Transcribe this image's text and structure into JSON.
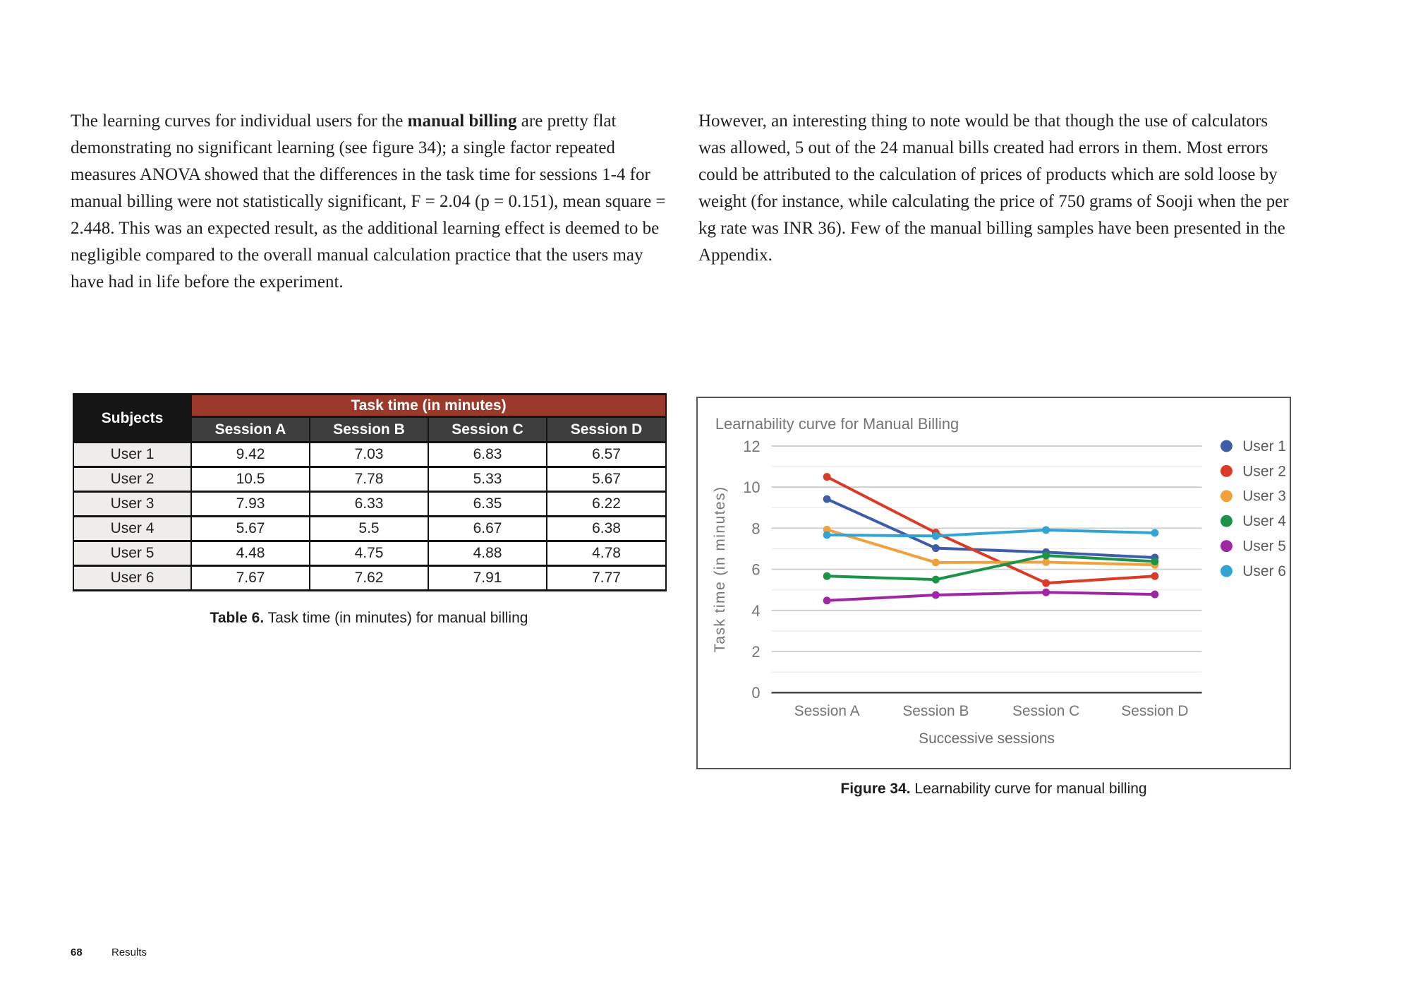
{
  "page": {
    "footer_page_number": "68",
    "footer_section": "Results"
  },
  "paragraphs": {
    "left_pre": "The learning curves for individual users for the ",
    "left_bold": "manual billing",
    "left_post": " are pretty flat demonstrating no significant learning (see figure 34); a single factor repeated measures ANOVA showed that the differences in the task time for sessions 1-4 for manual billing were not statistically significant, F = 2.04 (p = 0.151), mean square = 2.448. This was an expected result, as the additional learning effect is deemed to be negligible compared to the overall manual calculation practice that the users may have had in life before the experiment.",
    "right": "However, an interesting thing to note would be that though the use of calculators was allowed, 5 out of the 24 manual bills created had errors in them. Most errors could be attributed to the calculation of prices of products which are sold loose by weight (for instance, while calculating the price of 750 grams of Sooji when the per kg rate was INR 36). Few of the manual billing samples have been presented in the Appendix."
  },
  "table": {
    "group_header": "Task time (in minutes)",
    "col_headers": [
      "Subjects",
      "Session A",
      "Session B",
      "Session C",
      "Session D"
    ],
    "rows": [
      {
        "subject": "User 1",
        "values": [
          "9.42",
          "7.03",
          "6.83",
          "6.57"
        ]
      },
      {
        "subject": "User 2",
        "values": [
          "10.5",
          "7.78",
          "5.33",
          "5.67"
        ]
      },
      {
        "subject": "User 3",
        "values": [
          "7.93",
          "6.33",
          "6.35",
          "6.22"
        ]
      },
      {
        "subject": "User 4",
        "values": [
          "5.67",
          "5.5",
          "6.67",
          "6.38"
        ]
      },
      {
        "subject": "User 5",
        "values": [
          "4.48",
          "4.75",
          "4.88",
          "4.78"
        ]
      },
      {
        "subject": "User 6",
        "values": [
          "7.67",
          "7.62",
          "7.91",
          "7.77"
        ]
      }
    ],
    "caption_bold": "Table 6.",
    "caption_rest": " Task time (in minutes) for manual billing",
    "colors": {
      "group_header_bg": "#9b3a2b",
      "subjects_header_bg": "#151515",
      "session_header_bg": "#3e3e3e",
      "subject_cell_bg": "#efedea"
    }
  },
  "chart_data": {
    "type": "line",
    "title": "Learnability curve for Manual Billing",
    "xlabel": "Successive sessions",
    "ylabel": "Task time (in minutes)",
    "categories": [
      "Session A",
      "Session B",
      "Session C",
      "Session D"
    ],
    "series": [
      {
        "name": "User 1",
        "color": "#3d5da8",
        "values": [
          9.42,
          7.03,
          6.83,
          6.57
        ]
      },
      {
        "name": "User 2",
        "color": "#da3b27",
        "values": [
          10.5,
          7.78,
          5.33,
          5.67
        ]
      },
      {
        "name": "User 3",
        "color": "#f0a13c",
        "values": [
          7.93,
          6.33,
          6.35,
          6.22
        ]
      },
      {
        "name": "User 4",
        "color": "#1b9447",
        "values": [
          5.67,
          5.5,
          6.67,
          6.38
        ]
      },
      {
        "name": "User 5",
        "color": "#9e28a4",
        "values": [
          4.48,
          4.75,
          4.88,
          4.78
        ]
      },
      {
        "name": "User 6",
        "color": "#30a5d4",
        "values": [
          7.67,
          7.62,
          7.91,
          7.77
        ]
      }
    ],
    "ylim": [
      0,
      12
    ],
    "ytick_step": 2,
    "grid": true,
    "legend_position": "right",
    "text_color": "#757575",
    "tick_color": "#757575",
    "legend_text_color": "#595959",
    "major_grid_color": "#cccccc",
    "minor_grid_color": "#ebebeb",
    "axis_line_color": "#3c3c3c"
  },
  "figure_caption": {
    "bold": "Figure 34.",
    "rest": " Learnability curve for manual billing"
  }
}
